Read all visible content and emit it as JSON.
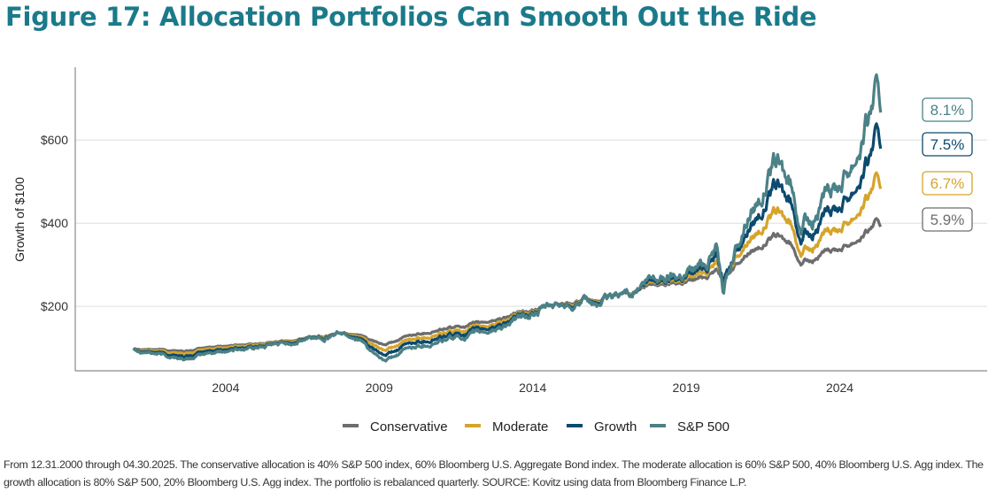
{
  "title": "Figure 17: Allocation Portfolios Can Smooth Out the Ride",
  "footnote": "From 12.31.2000 through 04.30.2025. The conservative allocation is 40% S&P 500 index, 60% Bloomberg U.S. Aggregate Bond index. The moderate allocation is 60% S&P 500, 40% Bloomberg U.S. Agg index. The growth allocation is 80% S&P 500, 20% Bloomberg U.S. Agg index. The portfolio is rebalanced quarterly. SOURCE: Kovitz using data from Bloomberg Finance L.P.",
  "chart_data": {
    "type": "line",
    "title": "Figure 17: Allocation Portfolios Can Smooth Out the Ride",
    "xlabel": "",
    "ylabel": "Growth of $100",
    "xlim": [
      1999.1,
      2028.8
    ],
    "ylim": [
      45,
      775
    ],
    "xticks": [
      2004,
      2009,
      2014,
      2019,
      2024
    ],
    "xtick_labels": [
      "2004",
      "2009",
      "2014",
      "2019",
      "2024"
    ],
    "yticks": [
      200,
      400,
      600
    ],
    "ytick_labels": [
      "$200",
      "$400",
      "$600"
    ],
    "grid": "horizontal",
    "legend_position": "bottom",
    "x": [
      2001.0,
      2002.0,
      2002.75,
      2003.5,
      2004.5,
      2005.5,
      2006.5,
      2007.75,
      2008.3,
      2008.8,
      2009.2,
      2010.0,
      2011.5,
      2012.5,
      2013.5,
      2014.5,
      2015.5,
      2016.1,
      2017.0,
      2018.0,
      2018.95,
      2019.5,
      2020.0,
      2020.2,
      2021.0,
      2021.95,
      2022.4,
      2022.75,
      2023.5,
      2024.0,
      2024.5,
      2024.95,
      2025.15,
      2025.33
    ],
    "series": [
      {
        "name": "Conservative",
        "color": "#6d6d6d",
        "end_label": "5.9%",
        "values": [
          100,
          95,
          92,
          102,
          108,
          112,
          122,
          137,
          133,
          115,
          106,
          130,
          150,
          162,
          182,
          200,
          215,
          212,
          232,
          252,
          260,
          270,
          290,
          268,
          330,
          370,
          348,
          305,
          325,
          340,
          360,
          385,
          405,
          390
        ]
      },
      {
        "name": "Moderate",
        "color": "#d6a42b",
        "end_label": "6.7%",
        "values": [
          100,
          91,
          86,
          98,
          105,
          110,
          121,
          137,
          130,
          105,
          92,
          120,
          140,
          152,
          177,
          198,
          214,
          209,
          232,
          257,
          268,
          282,
          310,
          270,
          360,
          428,
          395,
          330,
          365,
          390,
          425,
          470,
          510,
          480
        ]
      },
      {
        "name": "Growth",
        "color": "#0c4a6e",
        "end_label": "7.5%",
        "values": [
          100,
          86,
          79,
          93,
          101,
          107,
          119,
          137,
          127,
          95,
          80,
          111,
          132,
          145,
          172,
          197,
          212,
          206,
          232,
          260,
          275,
          293,
          330,
          268,
          390,
          490,
          445,
          365,
          405,
          445,
          495,
          560,
          620,
          575
        ]
      },
      {
        "name": "S&P 500",
        "color": "#4b8187",
        "end_label": "8.1%",
        "values": [
          100,
          82,
          72,
          88,
          98,
          105,
          117,
          137,
          124,
          85,
          67,
          100,
          124,
          137,
          167,
          196,
          211,
          202,
          233,
          265,
          282,
          303,
          350,
          250,
          420,
          545,
          485,
          395,
          445,
          500,
          570,
          665,
          730,
          660
        ]
      }
    ]
  }
}
